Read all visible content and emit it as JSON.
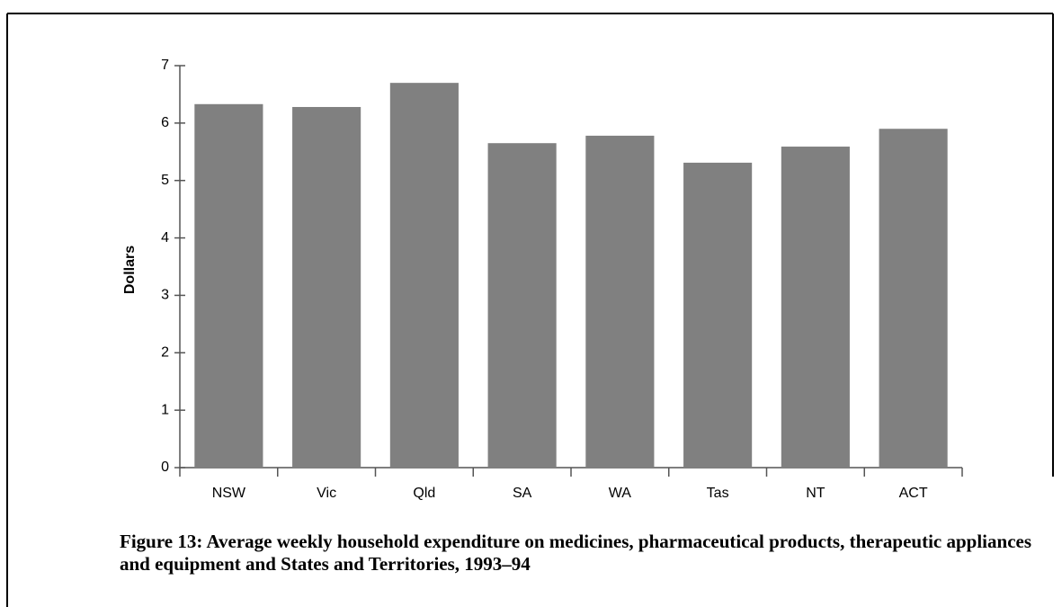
{
  "chart_data": {
    "type": "bar",
    "title": "Figure 13: Average weekly household expenditure on medicines, pharmaceutical products, therapeutic appliances and equipment and States and Territories, 1993–94",
    "y_label": "Dollars",
    "categories": [
      "NSW",
      "Vic",
      "Qld",
      "SA",
      "WA",
      "Tas",
      "NT",
      "ACT"
    ],
    "values": [
      6.33,
      6.28,
      6.7,
      5.65,
      5.78,
      5.31,
      5.59,
      5.9
    ],
    "color": "#808080",
    "ylim": [
      0,
      7
    ],
    "yticks": [
      0,
      1,
      2,
      3,
      4,
      5,
      6,
      7
    ],
    "grid": false
  }
}
